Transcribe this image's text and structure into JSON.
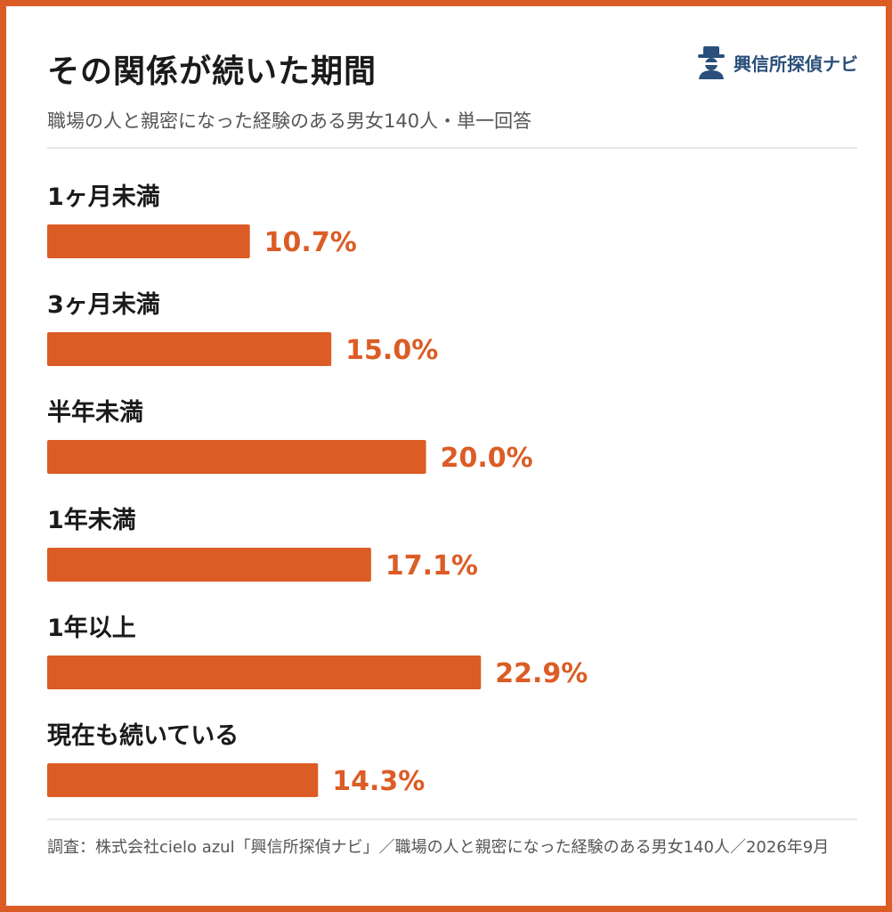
{
  "header": {
    "title": "その関係が続いた期間",
    "subtitle": "職場の人と親密になった経験のある男女140人・単一回答"
  },
  "logo": {
    "text": "興信所探偵ナビ",
    "icon": "detective-icon"
  },
  "footer": {
    "source": "調査：株式会社cielo azul「興信所探偵ナビ」／職場の人と親密になった経験のある男女140人／2026年9月"
  },
  "colors": {
    "accent": "#dc5c25",
    "logo": "#2a4f7a"
  },
  "chart_data": {
    "type": "bar",
    "orientation": "horizontal",
    "title": "その関係が続いた期間",
    "subtitle": "職場の人と親密になった経験のある男女140人・単一回答",
    "categories": [
      "1ヶ月未満",
      "3ヶ月未満",
      "半年未満",
      "1年未満",
      "1年以上",
      "現在も続いている"
    ],
    "values": [
      10.7,
      15.0,
      20.0,
      17.1,
      22.9,
      14.3
    ],
    "value_labels": [
      "10.7%",
      "15.0%",
      "20.0%",
      "17.1%",
      "22.9%",
      "14.3%"
    ],
    "unit": "%",
    "xlim": [
      0,
      43
    ],
    "grid": false,
    "legend": "none"
  }
}
